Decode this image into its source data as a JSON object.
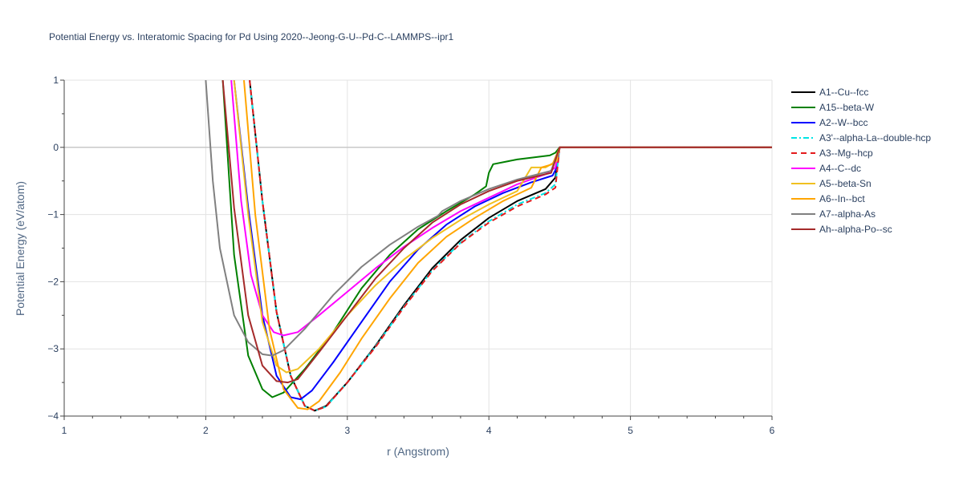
{
  "chart_data": {
    "type": "line",
    "title": "Potential Energy vs. Interatomic Spacing for Pd Using 2020--Jeong-G-U--Pd-C--LAMMPS--ipr1",
    "xlabel": "r (Angstrom)",
    "ylabel": "Potential Energy (eV/atom)",
    "xlim": [
      1,
      6
    ],
    "ylim": [
      -4,
      1
    ],
    "xticks": [
      "1",
      "2",
      "3",
      "4",
      "5",
      "6"
    ],
    "yticks": [
      "1",
      "0",
      "−1",
      "−2",
      "−3",
      "−4"
    ],
    "grid": true,
    "legend_position": "right",
    "series": [
      {
        "name": "A1--Cu--fcc",
        "color": "#000000",
        "dash": "solid",
        "x": [
          2.31,
          2.4,
          2.5,
          2.6,
          2.7,
          2.77,
          2.85,
          3.0,
          3.2,
          3.4,
          3.6,
          3.8,
          4.0,
          4.2,
          4.4,
          4.47,
          4.5,
          6.0
        ],
        "y": [
          1.0,
          -0.8,
          -2.45,
          -3.4,
          -3.85,
          -3.92,
          -3.85,
          -3.5,
          -2.95,
          -2.35,
          -1.8,
          -1.38,
          -1.05,
          -0.8,
          -0.62,
          -0.45,
          0.0,
          0.0
        ]
      },
      {
        "name": "A15--beta-W",
        "color": "#008000",
        "dash": "solid",
        "x": [
          2.12,
          2.2,
          2.3,
          2.4,
          2.47,
          2.55,
          2.7,
          2.9,
          3.1,
          3.3,
          3.5,
          3.7,
          3.9,
          3.98,
          4.0,
          4.03,
          4.2,
          4.43,
          4.47,
          4.5,
          6.0
        ],
        "y": [
          1.0,
          -1.6,
          -3.1,
          -3.6,
          -3.72,
          -3.65,
          -3.3,
          -2.75,
          -2.1,
          -1.6,
          -1.22,
          -0.95,
          -0.7,
          -0.58,
          -0.38,
          -0.25,
          -0.18,
          -0.12,
          -0.08,
          0.0,
          0.0
        ]
      },
      {
        "name": "A2--W--bcc",
        "color": "#0000ff",
        "dash": "solid",
        "x": [
          2.2,
          2.3,
          2.4,
          2.5,
          2.6,
          2.67,
          2.75,
          2.9,
          3.1,
          3.3,
          3.5,
          3.7,
          3.9,
          4.1,
          4.3,
          4.45,
          4.48,
          4.5,
          6.0
        ],
        "y": [
          1.0,
          -0.9,
          -2.5,
          -3.4,
          -3.72,
          -3.75,
          -3.62,
          -3.2,
          -2.6,
          -2.0,
          -1.52,
          -1.15,
          -0.88,
          -0.68,
          -0.52,
          -0.42,
          -0.3,
          0.0,
          0.0
        ]
      },
      {
        "name": "A3'--alpha-La--double-hcp",
        "color": "#00e5e5",
        "dash": "dashdot",
        "x": [
          2.31,
          2.4,
          2.5,
          2.6,
          2.7,
          2.77,
          2.85,
          3.0,
          3.2,
          3.4,
          3.6,
          3.8,
          4.0,
          4.2,
          4.4,
          4.47,
          4.5,
          6.0
        ],
        "y": [
          1.0,
          -0.8,
          -2.45,
          -3.4,
          -3.85,
          -3.92,
          -3.86,
          -3.5,
          -2.96,
          -2.37,
          -1.83,
          -1.42,
          -1.1,
          -0.85,
          -0.68,
          -0.55,
          0.0,
          0.0
        ]
      },
      {
        "name": "A3--Mg--hcp",
        "color": "#e41a1c",
        "dash": "dash",
        "x": [
          2.31,
          2.4,
          2.5,
          2.6,
          2.7,
          2.77,
          2.85,
          3.0,
          3.2,
          3.4,
          3.6,
          3.8,
          4.0,
          4.2,
          4.4,
          4.47,
          4.5,
          6.0
        ],
        "y": [
          1.0,
          -0.8,
          -2.45,
          -3.4,
          -3.85,
          -3.92,
          -3.86,
          -3.5,
          -2.97,
          -2.38,
          -1.84,
          -1.43,
          -1.12,
          -0.88,
          -0.7,
          -0.6,
          0.0,
          0.0
        ]
      },
      {
        "name": "A4--C--dc",
        "color": "#ff00ff",
        "dash": "solid",
        "x": [
          2.18,
          2.25,
          2.32,
          2.4,
          2.48,
          2.55,
          2.65,
          2.8,
          3.0,
          3.2,
          3.4,
          3.6,
          3.8,
          4.0,
          4.2,
          4.4,
          4.47,
          4.5,
          6.0
        ],
        "y": [
          1.0,
          -0.8,
          -1.9,
          -2.5,
          -2.75,
          -2.8,
          -2.75,
          -2.5,
          -2.15,
          -1.8,
          -1.48,
          -1.2,
          -0.95,
          -0.75,
          -0.55,
          -0.4,
          -0.3,
          0.0,
          0.0
        ]
      },
      {
        "name": "A5--beta-Sn",
        "color": "#f0c020",
        "dash": "solid",
        "x": [
          2.2,
          2.3,
          2.4,
          2.5,
          2.57,
          2.65,
          2.8,
          3.0,
          3.2,
          3.4,
          3.6,
          3.8,
          4.0,
          4.2,
          4.3,
          4.4,
          4.48,
          4.5,
          6.0
        ],
        "y": [
          1.0,
          -1.0,
          -2.6,
          -3.25,
          -3.35,
          -3.3,
          -3.0,
          -2.5,
          -2.05,
          -1.67,
          -1.35,
          -1.08,
          -0.85,
          -0.65,
          -0.3,
          -0.3,
          -0.2,
          0.0,
          0.0
        ]
      },
      {
        "name": "A6--In--bct",
        "color": "#ffa500",
        "dash": "solid",
        "x": [
          2.27,
          2.35,
          2.45,
          2.55,
          2.65,
          2.72,
          2.8,
          2.95,
          3.1,
          3.3,
          3.5,
          3.7,
          3.9,
          4.1,
          4.3,
          4.37,
          4.45,
          4.5,
          6.0
        ],
        "y": [
          1.0,
          -1.0,
          -2.7,
          -3.6,
          -3.88,
          -3.9,
          -3.78,
          -3.35,
          -2.85,
          -2.25,
          -1.72,
          -1.33,
          -1.05,
          -0.8,
          -0.6,
          -0.3,
          -0.25,
          0.0,
          0.0
        ]
      },
      {
        "name": "A7--alpha-As",
        "color": "#808080",
        "dash": "solid",
        "x": [
          2.0,
          2.05,
          2.1,
          2.2,
          2.3,
          2.4,
          2.47,
          2.55,
          2.7,
          2.9,
          3.1,
          3.3,
          3.5,
          3.64,
          3.67,
          3.8,
          4.0,
          4.2,
          4.44,
          4.5,
          6.0
        ],
        "y": [
          1.0,
          -0.5,
          -1.5,
          -2.5,
          -2.9,
          -3.08,
          -3.1,
          -3.02,
          -2.7,
          -2.2,
          -1.78,
          -1.45,
          -1.18,
          -1.02,
          -0.95,
          -0.8,
          -0.62,
          -0.48,
          -0.35,
          0.0,
          0.0
        ]
      },
      {
        "name": "Ah--alpha-Po--sc",
        "color": "#a52a2a",
        "dash": "solid",
        "x": [
          2.12,
          2.2,
          2.3,
          2.4,
          2.5,
          2.58,
          2.65,
          2.8,
          3.0,
          3.2,
          3.4,
          3.6,
          3.8,
          4.0,
          4.2,
          4.44,
          4.5,
          6.0
        ],
        "y": [
          1.0,
          -0.9,
          -2.5,
          -3.25,
          -3.48,
          -3.5,
          -3.45,
          -3.05,
          -2.5,
          -1.95,
          -1.5,
          -1.12,
          -0.85,
          -0.65,
          -0.5,
          -0.38,
          0.0,
          0.0
        ]
      }
    ]
  }
}
